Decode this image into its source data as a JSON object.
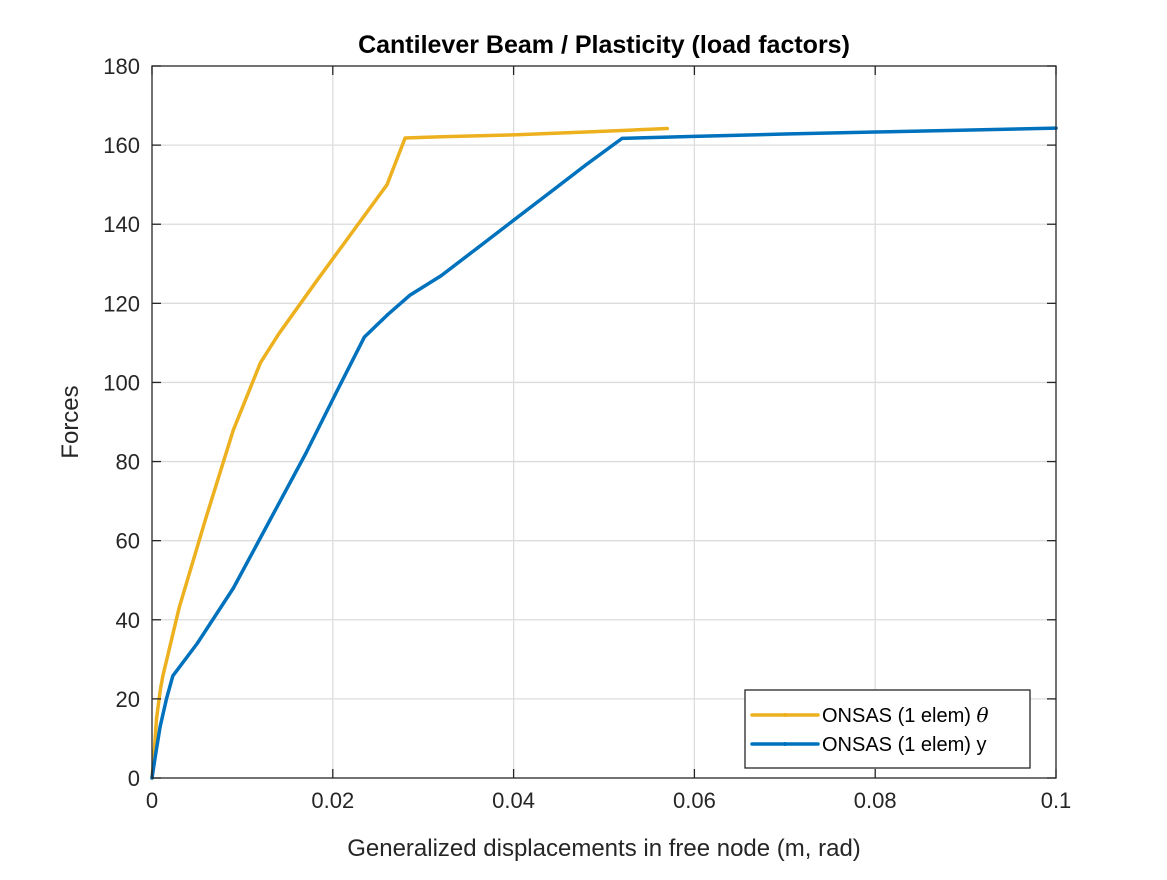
{
  "chart_data": {
    "type": "line",
    "title": "Cantilever Beam / Plasticity (load factors)",
    "xlabel": "Generalized displacements in free node (m, rad)",
    "ylabel": "Forces",
    "xlim": [
      0,
      0.1
    ],
    "ylim": [
      0,
      180
    ],
    "x_ticks": [
      "0",
      "0.02",
      "0.04",
      "0.06",
      "0.08",
      "0.1"
    ],
    "x_tick_values": [
      0,
      0.02,
      0.04,
      0.06,
      0.08,
      0.1
    ],
    "y_ticks": [
      "0",
      "20",
      "40",
      "60",
      "80",
      "100",
      "120",
      "140",
      "160",
      "180"
    ],
    "y_tick_values": [
      0,
      20,
      40,
      60,
      80,
      100,
      120,
      140,
      160,
      180
    ],
    "grid": true,
    "legend_position": "bottom-right",
    "series": [
      {
        "name": "ONSAS (1 elem) θ",
        "label_main": "ONSAS (1 elem) ",
        "label_symbol": "θ",
        "color": "#EDB120",
        "x": [
          0,
          0.0002,
          0.0005,
          0.0009,
          0.0012,
          0.003,
          0.006,
          0.009,
          0.012,
          0.014,
          0.018,
          0.022,
          0.026,
          0.028,
          0.032,
          0.04,
          0.048,
          0.053,
          0.057
        ],
        "y": [
          0,
          5,
          15,
          22,
          25.8,
          43,
          66,
          88,
          105,
          112.2,
          125,
          137.5,
          150,
          161.8,
          162.1,
          162.6,
          163.3,
          163.8,
          164.2
        ]
      },
      {
        "name": "ONSAS (1 elem) y",
        "label_main": "ONSAS (1 elem) y",
        "label_symbol": "",
        "color": "#0072BD",
        "x": [
          0,
          0.0004,
          0.0009,
          0.0016,
          0.0023,
          0.005,
          0.009,
          0.013,
          0.017,
          0.0205,
          0.0235,
          0.026,
          0.0285,
          0.032,
          0.036,
          0.04,
          0.044,
          0.048,
          0.052,
          0.06,
          0.07,
          0.08,
          0.09,
          0.1
        ],
        "y": [
          0,
          6,
          13,
          20,
          25.8,
          34,
          48,
          65,
          82,
          98,
          111.5,
          117,
          122,
          127,
          134,
          141,
          148,
          155,
          161.7,
          162.2,
          162.8,
          163.3,
          163.8,
          164.3
        ]
      }
    ]
  }
}
